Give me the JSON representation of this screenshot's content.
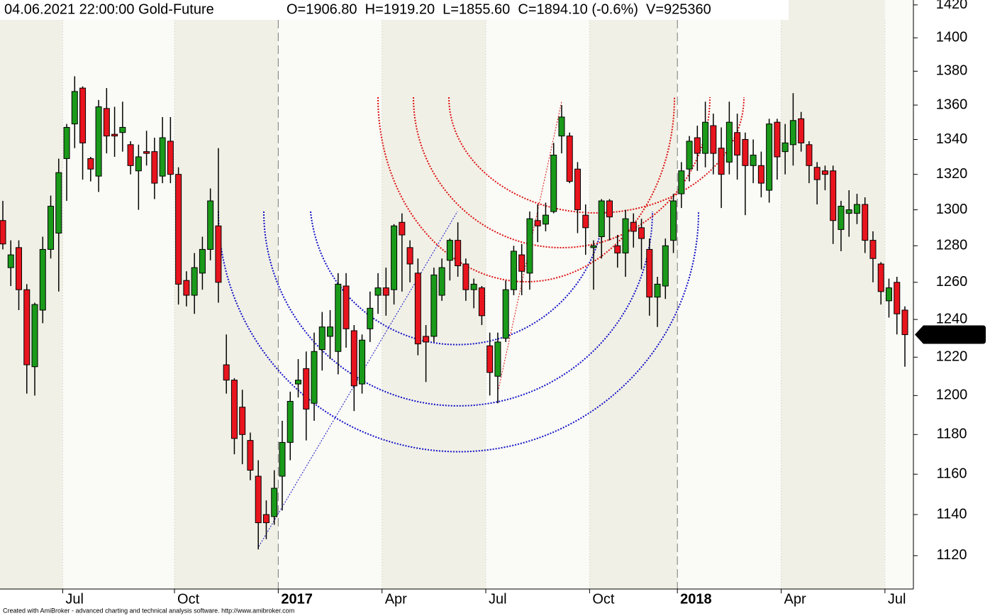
{
  "chart_data": {
    "type": "candlestick",
    "title": "04.06.2021 22:00:00 Gold-Future",
    "info": "O=1906.80  H=1919.20  L=1855.60  C=1894.10 (-0.6%)  V=925360",
    "credit": "Created with AmiBroker - advanced charting and technical analysis software. http://www.amibroker.com",
    "log_scale": true,
    "up_color": "#1a9a1a",
    "down_color": "#e8141e",
    "categories": [
      null,
      null,
      null,
      null,
      null,
      null,
      null,
      null,
      "Jul",
      null,
      null,
      null,
      null,
      null,
      null,
      null,
      null,
      null,
      null,
      null,
      null,
      null,
      "Oct",
      null,
      null,
      null,
      null,
      null,
      null,
      null,
      null,
      null,
      null,
      null,
      null,
      "2017",
      null,
      null,
      null,
      null,
      null,
      null,
      null,
      null,
      null,
      null,
      null,
      null,
      "Apr",
      null,
      null,
      null,
      null,
      null,
      null,
      null,
      null,
      null,
      null,
      null,
      null,
      "Jul",
      null,
      null,
      null,
      null,
      null,
      null,
      null,
      null,
      null,
      null,
      null,
      null,
      "Oct",
      null,
      null,
      null,
      null,
      null,
      null,
      null,
      null,
      null,
      null,
      "2018",
      null,
      null,
      null,
      null,
      null,
      null,
      null,
      null,
      null,
      null,
      null,
      null,
      "Apr",
      null,
      null,
      null,
      null,
      null,
      null,
      null,
      null,
      null,
      null,
      null,
      null,
      "Jul",
      null,
      null
    ],
    "open": [
      1294,
      1268,
      1279,
      1256,
      1215,
      1245,
      1278,
      1287,
      1329,
      1349,
      1370,
      1329,
      1319,
      1358,
      1343,
      1344,
      1337,
      1322,
      1333,
      1333,
      1319,
      1339,
      1320,
      1261,
      1253,
      1265,
      1278,
      1291,
      1216,
      1208,
      1194,
      1177,
      1159,
      1140,
      1139,
      1159,
      1176,
      1206,
      1214,
      1196,
      1224,
      1231,
      1223,
      1258,
      1234,
      1206,
      1235,
      1253,
      1257,
      1256,
      1293,
      1279,
      1265,
      1231,
      1231,
      1253,
      1272,
      1283,
      1270,
      1256,
      1257,
      1226,
      1210,
      1230,
      1256,
      1275,
      1265,
      1294,
      1292,
      1299,
      1342,
      1342,
      1323,
      1297,
      1279,
      1285,
      1305,
      1280,
      1276,
      1293,
      1290,
      1278,
      1252,
      1258,
      1283,
      1309,
      1323,
      1341,
      1332,
      1348,
      1335,
      1327,
      1344,
      1340,
      1325,
      1325,
      1311,
      1350,
      1333,
      1337,
      1352,
      1337,
      1324,
      1322,
      1322,
      1289,
      1298,
      1298,
      1303,
      1283,
      1270,
      1250,
      1260,
      1245
    ],
    "high": [
      1305,
      1283,
      1283,
      1259,
      1249,
      1285,
      1308,
      1329,
      1349,
      1377,
      1371,
      1330,
      1363,
      1370,
      1359,
      1362,
      1339,
      1337,
      1345,
      1341,
      1353,
      1353,
      1324,
      1266,
      1276,
      1285,
      1312,
      1335,
      1232,
      1209,
      1203,
      1181,
      1167,
      1147,
      1162,
      1187,
      1202,
      1219,
      1223,
      1233,
      1244,
      1245,
      1265,
      1265,
      1237,
      1232,
      1255,
      1265,
      1268,
      1292,
      1298,
      1283,
      1273,
      1237,
      1268,
      1273,
      1284,
      1293,
      1273,
      1262,
      1258,
      1233,
      1233,
      1261,
      1280,
      1281,
      1299,
      1303,
      1304,
      1338,
      1360,
      1344,
      1327,
      1303,
      1283,
      1306,
      1306,
      1286,
      1300,
      1298,
      1295,
      1284,
      1263,
      1284,
      1309,
      1327,
      1342,
      1348,
      1362,
      1355,
      1347,
      1362,
      1355,
      1344,
      1340,
      1333,
      1352,
      1352,
      1349,
      1367,
      1356,
      1339,
      1327,
      1325,
      1325,
      1305,
      1311,
      1309,
      1307,
      1288,
      1271,
      1262,
      1263,
      1247
    ],
    "low": [
      1278,
      1258,
      1245,
      1201,
      1200,
      1238,
      1273,
      1255,
      1305,
      1335,
      1317,
      1316,
      1310,
      1332,
      1330,
      1333,
      1320,
      1300,
      1325,
      1306,
      1315,
      1315,
      1248,
      1247,
      1243,
      1256,
      1272,
      1249,
      1201,
      1170,
      1165,
      1157,
      1123,
      1128,
      1135,
      1142,
      1167,
      1199,
      1177,
      1187,
      1213,
      1219,
      1211,
      1225,
      1192,
      1201,
      1228,
      1243,
      1242,
      1248,
      1255,
      1260,
      1221,
      1207,
      1228,
      1250,
      1261,
      1263,
      1250,
      1246,
      1237,
      1200,
      1196,
      1228,
      1253,
      1253,
      1256,
      1282,
      1288,
      1298,
      1332,
      1315,
      1287,
      1275,
      1256,
      1273,
      1283,
      1268,
      1263,
      1279,
      1267,
      1242,
      1236,
      1251,
      1276,
      1301,
      1316,
      1322,
      1324,
      1320,
      1301,
      1320,
      1317,
      1297,
      1315,
      1307,
      1304,
      1317,
      1320,
      1325,
      1333,
      1315,
      1303,
      1311,
      1281,
      1277,
      1285,
      1292,
      1276,
      1260,
      1248,
      1241,
      1232,
      1215
    ],
    "close": [
      1281,
      1275,
      1256,
      1216,
      1248,
      1278,
      1302,
      1321,
      1347,
      1368,
      1338,
      1323,
      1359,
      1342,
      1342,
      1347,
      1325,
      1330,
      1332,
      1315,
      1341,
      1320,
      1259,
      1253,
      1268,
      1278,
      1305,
      1260,
      1208,
      1178,
      1180,
      1162,
      1136,
      1136,
      1153,
      1176,
      1197,
      1208,
      1193,
      1223,
      1236,
      1236,
      1259,
      1235,
      1205,
      1229,
      1246,
      1257,
      1253,
      1291,
      1286,
      1270,
      1227,
      1228,
      1264,
      1268,
      1283,
      1269,
      1256,
      1259,
      1242,
      1212,
      1228,
      1256,
      1277,
      1266,
      1295,
      1291,
      1297,
      1331,
      1353,
      1316,
      1300,
      1290,
      1280,
      1305,
      1296,
      1276,
      1295,
      1288,
      1284,
      1252,
      1259,
      1280,
      1305,
      1322,
      1339,
      1332,
      1350,
      1332,
      1320,
      1350,
      1331,
      1325,
      1331,
      1315,
      1349,
      1330,
      1338,
      1351,
      1338,
      1325,
      1317,
      1320,
      1294,
      1302,
      1300,
      1303,
      1283,
      1273,
      1255,
      1257,
      1243,
      1231.9
    ],
    "last_price": 1231.9,
    "ylim": [
      1104,
      1423
    ],
    "yticks": [
      1120,
      1140,
      1160,
      1180,
      1200,
      1220,
      1240,
      1260,
      1280,
      1300,
      1320,
      1340,
      1360,
      1380,
      1400,
      1420
    ]
  }
}
